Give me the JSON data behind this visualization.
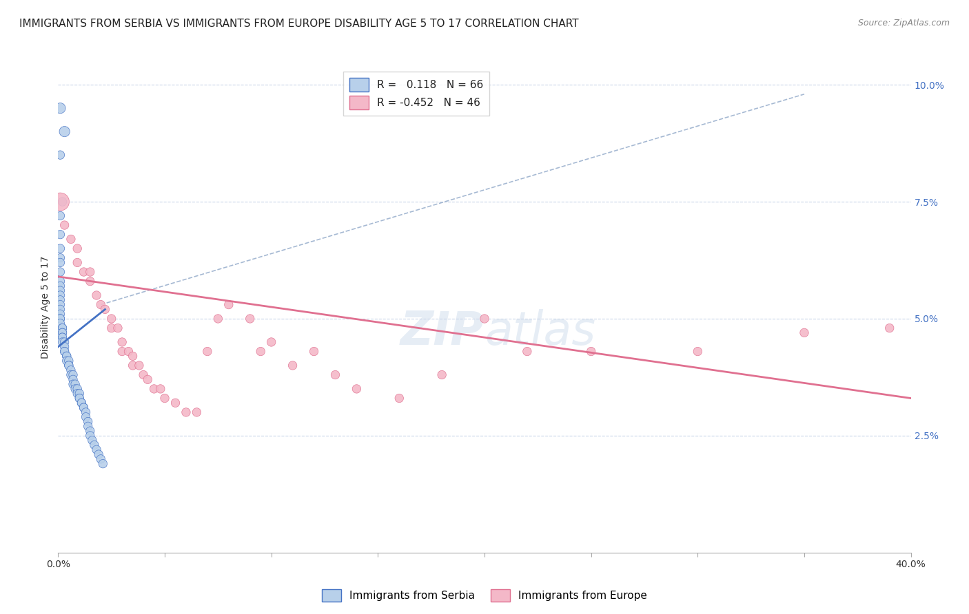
{
  "title": "IMMIGRANTS FROM SERBIA VS IMMIGRANTS FROM EUROPE DISABILITY AGE 5 TO 17 CORRELATION CHART",
  "source": "Source: ZipAtlas.com",
  "ylabel": "Disability Age 5 to 17",
  "R_serbia": 0.118,
  "N_serbia": 66,
  "R_europe": -0.452,
  "N_europe": 46,
  "serbia_color": "#b8d0ea",
  "serbia_line_color": "#4472c4",
  "europe_color": "#f4b8c8",
  "europe_line_color": "#e07090",
  "dashed_line_color": "#90a8c8",
  "watermark": "ZIPatlas",
  "xlim": [
    0.0,
    0.4
  ],
  "ylim": [
    0.0,
    0.105
  ],
  "serbia_x": [
    0.001,
    0.003,
    0.001,
    0.002,
    0.001,
    0.001,
    0.001,
    0.001,
    0.001,
    0.001,
    0.001,
    0.001,
    0.001,
    0.001,
    0.001,
    0.001,
    0.001,
    0.001,
    0.001,
    0.001,
    0.001,
    0.002,
    0.002,
    0.002,
    0.002,
    0.002,
    0.002,
    0.002,
    0.003,
    0.003,
    0.003,
    0.003,
    0.004,
    0.004,
    0.004,
    0.005,
    0.005,
    0.005,
    0.006,
    0.006,
    0.007,
    0.007,
    0.007,
    0.008,
    0.008,
    0.009,
    0.009,
    0.01,
    0.01,
    0.01,
    0.011,
    0.011,
    0.012,
    0.012,
    0.013,
    0.013,
    0.014,
    0.014,
    0.015,
    0.015,
    0.016,
    0.017,
    0.018,
    0.019,
    0.02,
    0.021
  ],
  "serbia_y": [
    0.095,
    0.09,
    0.085,
    0.075,
    0.072,
    0.068,
    0.065,
    0.063,
    0.062,
    0.06,
    0.058,
    0.057,
    0.056,
    0.055,
    0.054,
    0.053,
    0.052,
    0.051,
    0.05,
    0.05,
    0.049,
    0.048,
    0.048,
    0.047,
    0.047,
    0.046,
    0.046,
    0.045,
    0.045,
    0.044,
    0.043,
    0.043,
    0.042,
    0.042,
    0.041,
    0.041,
    0.04,
    0.04,
    0.039,
    0.038,
    0.038,
    0.037,
    0.036,
    0.036,
    0.035,
    0.035,
    0.034,
    0.034,
    0.033,
    0.033,
    0.032,
    0.032,
    0.031,
    0.031,
    0.03,
    0.029,
    0.028,
    0.027,
    0.026,
    0.025,
    0.024,
    0.023,
    0.022,
    0.021,
    0.02,
    0.019
  ],
  "serbia_sizes": [
    120,
    120,
    80,
    80,
    80,
    80,
    80,
    80,
    80,
    80,
    80,
    80,
    80,
    80,
    80,
    80,
    80,
    80,
    80,
    80,
    80,
    80,
    80,
    80,
    80,
    80,
    80,
    80,
    80,
    80,
    80,
    80,
    80,
    80,
    80,
    80,
    80,
    80,
    80,
    80,
    80,
    80,
    80,
    80,
    80,
    80,
    80,
    80,
    80,
    80,
    80,
    80,
    80,
    80,
    80,
    80,
    80,
    80,
    80,
    80,
    80,
    80,
    80,
    80,
    80,
    80
  ],
  "europe_x": [
    0.001,
    0.003,
    0.006,
    0.009,
    0.009,
    0.012,
    0.015,
    0.015,
    0.018,
    0.02,
    0.022,
    0.025,
    0.025,
    0.028,
    0.03,
    0.03,
    0.033,
    0.035,
    0.035,
    0.038,
    0.04,
    0.042,
    0.045,
    0.048,
    0.05,
    0.055,
    0.06,
    0.065,
    0.07,
    0.075,
    0.08,
    0.09,
    0.095,
    0.1,
    0.11,
    0.12,
    0.13,
    0.14,
    0.16,
    0.18,
    0.2,
    0.22,
    0.25,
    0.3,
    0.35,
    0.39
  ],
  "europe_y": [
    0.075,
    0.07,
    0.067,
    0.065,
    0.062,
    0.06,
    0.06,
    0.058,
    0.055,
    0.053,
    0.052,
    0.05,
    0.048,
    0.048,
    0.045,
    0.043,
    0.043,
    0.042,
    0.04,
    0.04,
    0.038,
    0.037,
    0.035,
    0.035,
    0.033,
    0.032,
    0.03,
    0.03,
    0.043,
    0.05,
    0.053,
    0.05,
    0.043,
    0.045,
    0.04,
    0.043,
    0.038,
    0.035,
    0.033,
    0.038,
    0.05,
    0.043,
    0.043,
    0.043,
    0.047,
    0.048
  ],
  "europe_sizes": [
    350,
    80,
    80,
    80,
    80,
    80,
    80,
    80,
    80,
    80,
    80,
    80,
    80,
    80,
    80,
    80,
    80,
    80,
    80,
    80,
    80,
    80,
    80,
    80,
    80,
    80,
    80,
    80,
    80,
    80,
    80,
    80,
    80,
    80,
    80,
    80,
    80,
    80,
    80,
    80,
    80,
    80,
    80,
    80,
    80,
    80
  ],
  "background_color": "#ffffff",
  "grid_color": "#c8d4e8",
  "title_fontsize": 11,
  "axis_label_fontsize": 10,
  "tick_fontsize": 10,
  "source_fontsize": 9
}
